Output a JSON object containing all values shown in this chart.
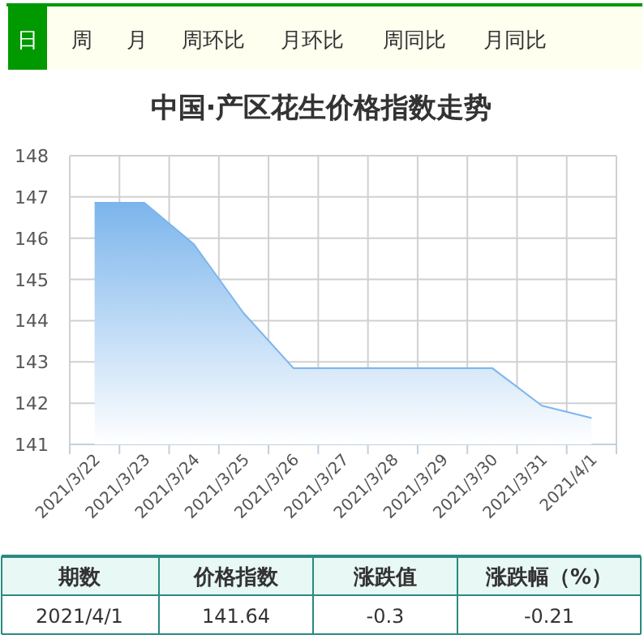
{
  "chart_data": {
    "type": "area",
    "title": "中国·产区花生价格指数走势",
    "categories": [
      "2021/3/22",
      "2021/3/23",
      "2021/3/24",
      "2021/3/25",
      "2021/3/26",
      "2021/3/27",
      "2021/3/28",
      "2021/3/29",
      "2021/3/30",
      "2021/3/31",
      "2021/4/1"
    ],
    "values": [
      146.86,
      146.86,
      145.85,
      144.18,
      142.85,
      142.85,
      142.85,
      142.85,
      142.85,
      141.94,
      141.64
    ],
    "color": "#7cb5ec",
    "ylim": [
      141,
      148
    ],
    "yticks": [
      141,
      142,
      143,
      144,
      145,
      146,
      147,
      148
    ],
    "grid": true,
    "annotations": [
      "日",
      "周",
      "月",
      "周环比",
      "月环比",
      "周同比",
      "月同比",
      "期数",
      "价格指数",
      "涨跌值",
      "涨跌幅（%）",
      "2021/4/1",
      "141.64",
      "-0.3",
      "-0.21"
    ]
  }
}
